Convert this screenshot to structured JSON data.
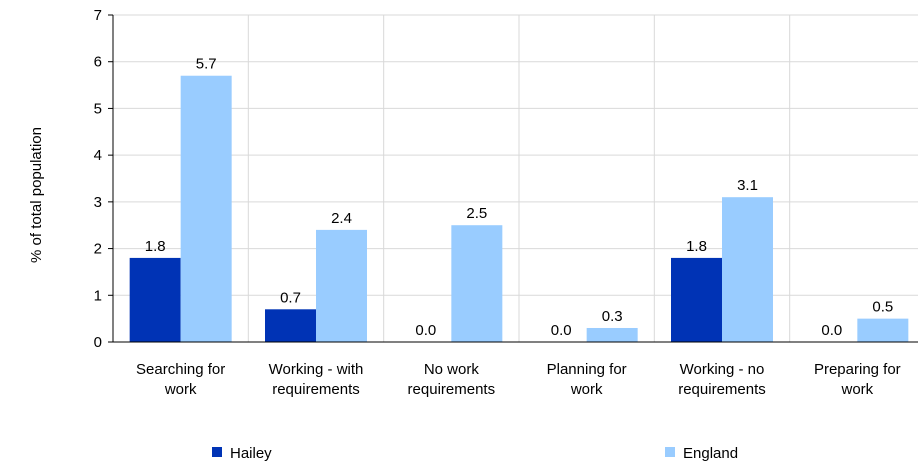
{
  "chart_data": {
    "type": "bar",
    "categories": [
      [
        "Searching for",
        "work"
      ],
      [
        "Working - with",
        "requirements"
      ],
      [
        "No work",
        "requirements"
      ],
      [
        "Planning for",
        "work"
      ],
      [
        "Working - no",
        "requirements"
      ],
      [
        "Preparing for",
        "work"
      ]
    ],
    "series": [
      {
        "name": "Hailey",
        "color": "#0033b5",
        "values": [
          1.8,
          0.7,
          0.0,
          0.0,
          1.8,
          0.0
        ],
        "labels": [
          "1.8",
          "0.7",
          "0.0",
          "0.0",
          "1.8",
          "0.0"
        ]
      },
      {
        "name": "England",
        "color": "#99ccff",
        "values": [
          5.7,
          2.4,
          2.5,
          0.3,
          3.1,
          0.5
        ],
        "labels": [
          "5.7",
          "2.4",
          "2.5",
          "0.3",
          "3.1",
          "0.5"
        ]
      }
    ],
    "ylabel": "% of total population",
    "ylim": [
      0,
      7
    ],
    "yticks": [
      "0",
      "1",
      "2",
      "3",
      "4",
      "5",
      "6",
      "7"
    ],
    "grid": true,
    "legend_position": "bottom"
  }
}
